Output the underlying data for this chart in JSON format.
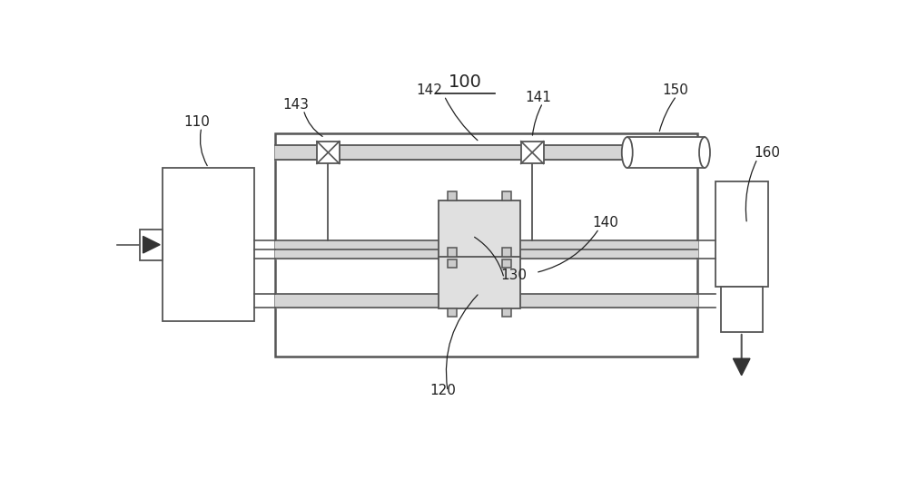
{
  "bg_color": "#ffffff",
  "line_color": "#555555",
  "label_color": "#222222",
  "title": "100",
  "label_fs": 11,
  "title_fs": 14
}
